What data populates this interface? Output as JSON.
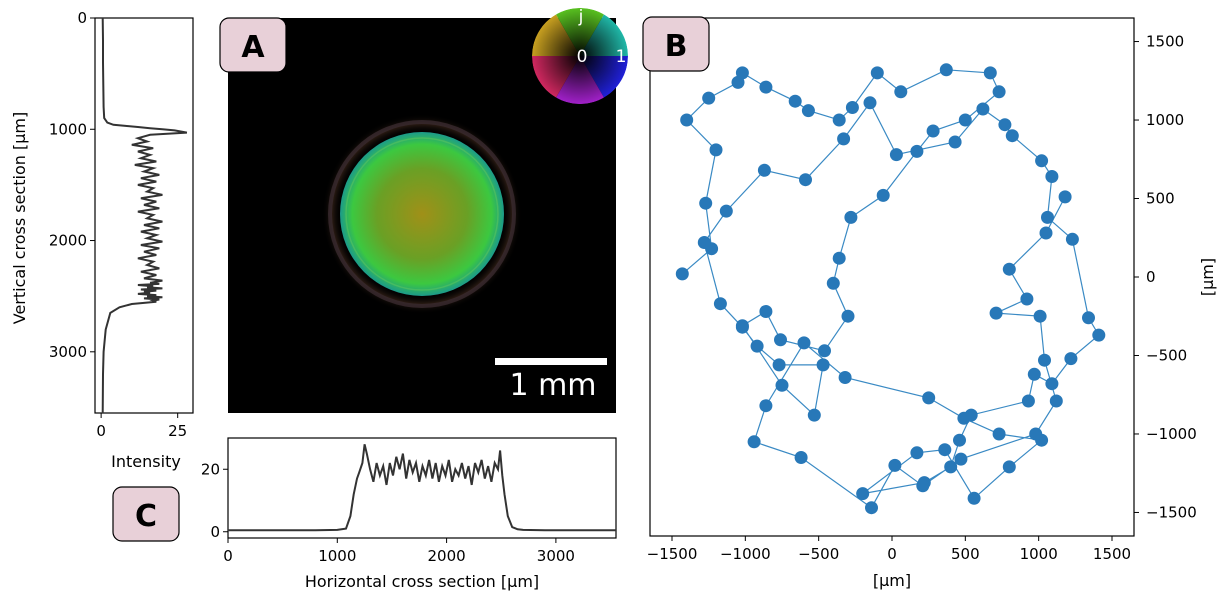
{
  "colors": {
    "badge_fill": "#e8d0d8",
    "trace": "#333333",
    "graph_node": "#2878b8",
    "graph_edge": "#3a8ac4",
    "image_background": "#000000"
  },
  "panels": {
    "a_label": "A",
    "b_label": "B",
    "c_label": "C"
  },
  "image_panel": {
    "scale_bar_label": "1 mm",
    "colorwheel": {
      "imag_label": "j",
      "zero_label": "0",
      "one_label": "1"
    }
  },
  "chart_data": [
    {
      "id": "vertical-profile",
      "type": "line",
      "xlabel": "Intensity",
      "ylabel": "Vertical cross section [µm]",
      "xlim": [
        -2,
        30
      ],
      "ylim": [
        3550,
        0
      ],
      "x_ticks": [
        0,
        25
      ],
      "y_ticks": [
        0,
        1000,
        2000,
        3000
      ],
      "grid": false,
      "series": [
        {
          "x": [
            0.5,
            0.6,
            0.6,
            0.7,
            0.8,
            1,
            2,
            4,
            8,
            12,
            16,
            20,
            24,
            28,
            16,
            12,
            15,
            10,
            17,
            12,
            16,
            13,
            18,
            11,
            17,
            14,
            19,
            13,
            18,
            12,
            17,
            15,
            20,
            13,
            18,
            14,
            19,
            12,
            17,
            15,
            20,
            14,
            19,
            13,
            18,
            15,
            20,
            13,
            19,
            14,
            18,
            12,
            17,
            15,
            19,
            13,
            18,
            14,
            20,
            16,
            19,
            12,
            17,
            15,
            20,
            13,
            18,
            14,
            16,
            12,
            18,
            15,
            20,
            14,
            19,
            17,
            18,
            10,
            6,
            3,
            1.5,
            0.8,
            0.6,
            0.5
          ],
          "y": [
            0,
            200,
            400,
            600,
            800,
            900,
            940,
            960,
            970,
            980,
            990,
            1000,
            1010,
            1030,
            1050,
            1080,
            1110,
            1140,
            1170,
            1200,
            1230,
            1260,
            1290,
            1320,
            1350,
            1380,
            1410,
            1440,
            1470,
            1500,
            1530,
            1560,
            1590,
            1620,
            1650,
            1680,
            1710,
            1740,
            1770,
            1800,
            1830,
            1860,
            1890,
            1920,
            1950,
            1980,
            2010,
            2040,
            2070,
            2100,
            2130,
            2160,
            2190,
            2220,
            2250,
            2280,
            2310,
            2340,
            2360,
            2380,
            2390,
            2400,
            2410,
            2420,
            2430,
            2440,
            2450,
            2460,
            2470,
            2480,
            2490,
            2500,
            2510,
            2520,
            2530,
            2540,
            2550,
            2570,
            2600,
            2650,
            2800,
            3000,
            3200,
            3550
          ]
        }
      ]
    },
    {
      "id": "horizontal-profile",
      "type": "line",
      "xlabel": "Horizontal cross section [µm]",
      "ylabel": "",
      "xlim": [
        0,
        3550
      ],
      "ylim": [
        -2,
        30
      ],
      "x_ticks": [
        0,
        1000,
        2000,
        3000
      ],
      "y_ticks": [
        0,
        20
      ],
      "grid": false,
      "series": [
        {
          "x": [
            0,
            200,
            400,
            600,
            800,
            1000,
            1080,
            1120,
            1150,
            1180,
            1200,
            1230,
            1250,
            1270,
            1300,
            1330,
            1360,
            1390,
            1420,
            1450,
            1480,
            1510,
            1540,
            1570,
            1600,
            1630,
            1660,
            1690,
            1720,
            1750,
            1780,
            1810,
            1840,
            1870,
            1900,
            1930,
            1960,
            1990,
            2020,
            2050,
            2080,
            2110,
            2140,
            2170,
            2200,
            2230,
            2260,
            2290,
            2320,
            2350,
            2380,
            2410,
            2440,
            2470,
            2490,
            2510,
            2530,
            2560,
            2600,
            2650,
            2700,
            2900,
            3200,
            3550
          ],
          "y": [
            0.5,
            0.5,
            0.5,
            0.5,
            0.5,
            0.6,
            1,
            5,
            12,
            17,
            19,
            22,
            28,
            25,
            20,
            16,
            22,
            18,
            21,
            15,
            22,
            18,
            24,
            20,
            25,
            17,
            23,
            19,
            22,
            16,
            21,
            18,
            23,
            17,
            22,
            16,
            21,
            18,
            23,
            16,
            20,
            18,
            22,
            17,
            21,
            15,
            22,
            19,
            23,
            17,
            21,
            16,
            22,
            20,
            26,
            18,
            12,
            5,
            1.5,
            0.8,
            0.6,
            0.5,
            0.5,
            0.5
          ]
        }
      ]
    },
    {
      "id": "node-graph",
      "type": "scatter",
      "xlabel": "[µm]",
      "ylabel": "[µm]",
      "xlim": [
        -1650,
        1650
      ],
      "ylim": [
        -1650,
        1650
      ],
      "x_ticks": [
        -1500,
        -1000,
        -500,
        0,
        500,
        1000,
        1500
      ],
      "y_ticks": [
        -1500,
        -1000,
        -500,
        0,
        500,
        1000,
        1500
      ],
      "grid": false,
      "series": [
        {
          "x": [
            -1430,
            -1230,
            -1270,
            -1200,
            -1400,
            -1250,
            -1050,
            -1020,
            -860,
            -660,
            -570,
            -360,
            -270,
            -100,
            60,
            370,
            670,
            730,
            500,
            280,
            170,
            -60,
            -280,
            -360,
            -400,
            -300,
            -460,
            -760,
            -860,
            -1020,
            -750,
            -530,
            -470,
            -770,
            -920,
            -1020,
            -1170,
            -1280,
            -1130,
            -870,
            -590,
            -330,
            -150,
            30,
            430,
            620,
            770,
            820,
            1020,
            1090,
            1060,
            1230,
            1340,
            1410,
            1220,
            1090,
            970,
            930,
            540,
            460,
            400,
            220,
            -200,
            170,
            360,
            560,
            800,
            1020,
            730,
            490,
            250,
            -320,
            -600,
            -860,
            -940,
            -620,
            -140,
            20,
            210,
            470,
            980,
            1120,
            1040,
            1010,
            710,
            920,
            800,
            1050,
            1180
          ],
          "y": [
            20,
            180,
            470,
            810,
            1000,
            1140,
            1240,
            1300,
            1210,
            1120,
            1060,
            1000,
            1080,
            1300,
            1180,
            1320,
            1300,
            1180,
            1000,
            930,
            800,
            520,
            380,
            120,
            -40,
            -250,
            -470,
            -400,
            -220,
            -310,
            -690,
            -880,
            -560,
            -560,
            -440,
            -320,
            -170,
            220,
            420,
            680,
            620,
            880,
            1110,
            780,
            860,
            1070,
            970,
            900,
            740,
            640,
            380,
            240,
            -260,
            -370,
            -520,
            -680,
            -620,
            -790,
            -880,
            -1040,
            -1210,
            -1310,
            -1380,
            -1120,
            -1100,
            -1410,
            -1210,
            -1040,
            -1000,
            -900,
            -770,
            -640,
            -420,
            -820,
            -1050,
            -1150,
            -1470,
            -1200,
            -1330,
            -1160,
            -1000,
            -790,
            -530,
            -250,
            -230,
            -140,
            50,
            280,
            510
          ]
        }
      ]
    }
  ]
}
